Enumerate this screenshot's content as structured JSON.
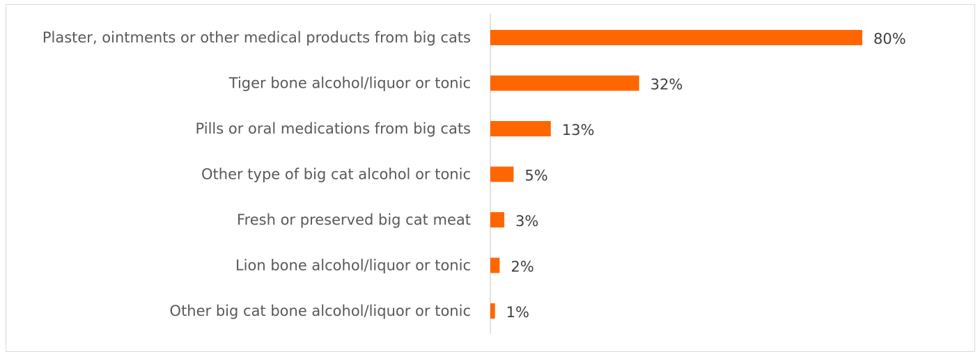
{
  "chart_data": {
    "type": "bar",
    "orientation": "horizontal",
    "categories": [
      "Plaster, ointments or other medical products from big cats",
      "Tiger bone alcohol/liquor or tonic",
      "Pills or oral medications from big cats",
      "Other type of big cat alcohol or tonic",
      "Fresh or preserved big cat meat",
      "Lion bone alcohol/liquor or tonic",
      "Other big cat bone alcohol/liquor or tonic"
    ],
    "values": [
      80,
      32,
      13,
      5,
      3,
      2,
      1
    ],
    "value_labels": [
      "80%",
      "32%",
      "13%",
      "5%",
      "3%",
      "2%",
      "1%"
    ],
    "unit": "%",
    "xlim": [
      0,
      100
    ],
    "grid": false,
    "legend": "none",
    "bar_color": "#ff6600",
    "title": "",
    "xlabel": "",
    "ylabel": ""
  }
}
